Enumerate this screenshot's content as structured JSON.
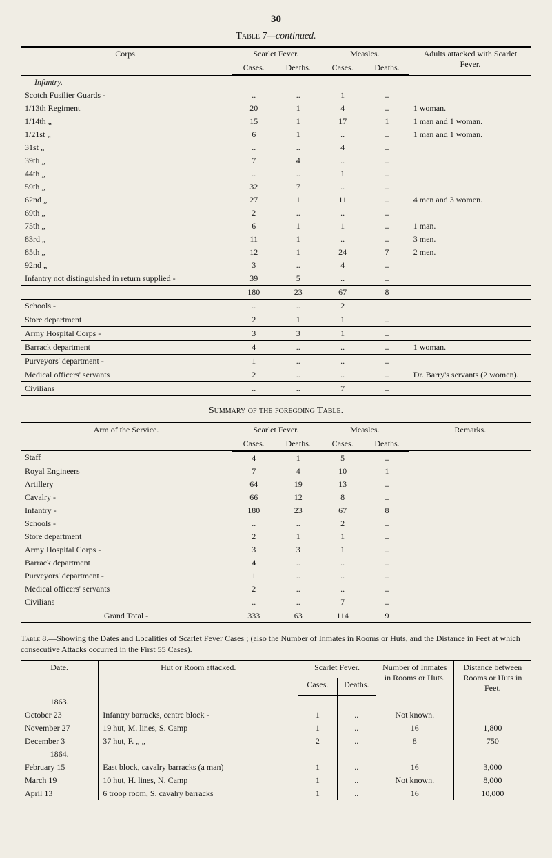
{
  "page_number": "30",
  "table7": {
    "title_prefix": "Table",
    "title_num": "7",
    "title_suffix": "—continued.",
    "headers": {
      "corps": "Corps.",
      "scarlet_fever": "Scarlet Fever.",
      "measles": "Measles.",
      "adults_attacked": "Adults attacked with Scarlet Fever.",
      "cases": "Cases.",
      "deaths": "Deaths."
    },
    "section_heading": "Infantry.",
    "rows": [
      {
        "corps": "Scotch Fusilier Guards  -",
        "sf_c": "..",
        "sf_d": "..",
        "m_c": "1",
        "m_d": "..",
        "rem": ""
      },
      {
        "corps": "1/13th Regiment",
        "sf_c": "20",
        "sf_d": "1",
        "m_c": "4",
        "m_d": "..",
        "rem": "1 woman."
      },
      {
        "corps": "1/14th    „",
        "sf_c": "15",
        "sf_d": "1",
        "m_c": "17",
        "m_d": "1",
        "rem": "1 man and 1 woman."
      },
      {
        "corps": "1/21st    „",
        "sf_c": "6",
        "sf_d": "1",
        "m_c": "..",
        "m_d": "..",
        "rem": "1 man and 1 woman."
      },
      {
        "corps": "31st       „",
        "sf_c": "..",
        "sf_d": "..",
        "m_c": "4",
        "m_d": "..",
        "rem": ""
      },
      {
        "corps": "39th      „",
        "sf_c": "7",
        "sf_d": "4",
        "m_c": "..",
        "m_d": "..",
        "rem": ""
      },
      {
        "corps": "44th      „",
        "sf_c": "..",
        "sf_d": "..",
        "m_c": "1",
        "m_d": "..",
        "rem": ""
      },
      {
        "corps": "59th      „",
        "sf_c": "32",
        "sf_d": "7",
        "m_c": "..",
        "m_d": "..",
        "rem": ""
      },
      {
        "corps": "62nd     „",
        "sf_c": "27",
        "sf_d": "1",
        "m_c": "11",
        "m_d": "..",
        "rem": "4 men and 3 women."
      },
      {
        "corps": "69th      „",
        "sf_c": "2",
        "sf_d": "..",
        "m_c": "..",
        "m_d": "..",
        "rem": ""
      },
      {
        "corps": "75th      „",
        "sf_c": "6",
        "sf_d": "1",
        "m_c": "1",
        "m_d": "..",
        "rem": "1 man."
      },
      {
        "corps": "83rd      „",
        "sf_c": "11",
        "sf_d": "1",
        "m_c": "..",
        "m_d": "..",
        "rem": "3 men."
      },
      {
        "corps": "85th      „",
        "sf_c": "12",
        "sf_d": "1",
        "m_c": "24",
        "m_d": "7",
        "rem": "2 men."
      },
      {
        "corps": "92nd     „",
        "sf_c": "3",
        "sf_d": "..",
        "m_c": "4",
        "m_d": "..",
        "rem": ""
      },
      {
        "corps": "Infantry not distinguished in return supplied  -",
        "sf_c": "39",
        "sf_d": "5",
        "m_c": "..",
        "m_d": "..",
        "rem": ""
      }
    ],
    "subtotal": {
      "sf_c": "180",
      "sf_d": "23",
      "m_c": "67",
      "m_d": "8"
    },
    "extras": [
      {
        "corps": "Schools  -",
        "sf_c": "..",
        "sf_d": "..",
        "m_c": "2",
        "m_d": "",
        "rem": ""
      },
      {
        "corps": "Store department",
        "sf_c": "2",
        "sf_d": "1",
        "m_c": "1",
        "m_d": "..",
        "rem": ""
      },
      {
        "corps": "Army Hospital Corps  -",
        "sf_c": "3",
        "sf_d": "3",
        "m_c": "1",
        "m_d": "..",
        "rem": ""
      },
      {
        "corps": "Barrack department",
        "sf_c": "4",
        "sf_d": "..",
        "m_c": "..",
        "m_d": "..",
        "rem": "1 woman."
      },
      {
        "corps": "Purveyors' department  -",
        "sf_c": "1",
        "sf_d": "..",
        "m_c": "..",
        "m_d": "..",
        "rem": ""
      },
      {
        "corps": "Medical officers' servants",
        "sf_c": "2",
        "sf_d": "..",
        "m_c": "..",
        "m_d": "..",
        "rem": "Dr. Barry's servants (2 women)."
      },
      {
        "corps": "Civilians",
        "sf_c": "..",
        "sf_d": "..",
        "m_c": "7",
        "m_d": "..",
        "rem": ""
      }
    ]
  },
  "summary": {
    "title": "Summary of the foregoing Table.",
    "headers": {
      "arm": "Arm of the Service.",
      "scarlet_fever": "Scarlet Fever.",
      "measles": "Measles.",
      "remarks": "Remarks.",
      "cases": "Cases.",
      "deaths": "Deaths."
    },
    "rows": [
      {
        "arm": "Staff",
        "sf_c": "4",
        "sf_d": "1",
        "m_c": "5",
        "m_d": "..",
        "rem": ""
      },
      {
        "arm": "Royal Engineers",
        "sf_c": "7",
        "sf_d": "4",
        "m_c": "10",
        "m_d": "1",
        "rem": ""
      },
      {
        "arm": "Artillery",
        "sf_c": "64",
        "sf_d": "19",
        "m_c": "13",
        "m_d": "..",
        "rem": ""
      },
      {
        "arm": "Cavalry  -",
        "sf_c": "66",
        "sf_d": "12",
        "m_c": "8",
        "m_d": "..",
        "rem": ""
      },
      {
        "arm": "Infantry -",
        "sf_c": "180",
        "sf_d": "23",
        "m_c": "67",
        "m_d": "8",
        "rem": ""
      },
      {
        "arm": "Schools  -",
        "sf_c": "..",
        "sf_d": "..",
        "m_c": "2",
        "m_d": "..",
        "rem": ""
      },
      {
        "arm": "Store department",
        "sf_c": "2",
        "sf_d": "1",
        "m_c": "1",
        "m_d": "..",
        "rem": ""
      },
      {
        "arm": "Army Hospital Corps  -",
        "sf_c": "3",
        "sf_d": "3",
        "m_c": "1",
        "m_d": "..",
        "rem": ""
      },
      {
        "arm": "Barrack department",
        "sf_c": "4",
        "sf_d": "..",
        "m_c": "..",
        "m_d": "..",
        "rem": ""
      },
      {
        "arm": "Purveyors' department  -",
        "sf_c": "1",
        "sf_d": "..",
        "m_c": "..",
        "m_d": "..",
        "rem": ""
      },
      {
        "arm": "Medical officers' servants",
        "sf_c": "2",
        "sf_d": "..",
        "m_c": "..",
        "m_d": "..",
        "rem": ""
      },
      {
        "arm": "Civilians",
        "sf_c": "..",
        "sf_d": "..",
        "m_c": "7",
        "m_d": "..",
        "rem": ""
      }
    ],
    "total": {
      "label": "Grand Total  -",
      "sf_c": "333",
      "sf_d": "63",
      "m_c": "114",
      "m_d": "9"
    }
  },
  "table8": {
    "caption_prefix": "Table",
    "caption_num": "8.",
    "caption_text": "—Showing the Dates and Localities of Scarlet Fever Cases ; (also the Number of Inmates in Rooms or Huts, and the Distance in Feet at which consecutive Attacks occurred in the First 55 Cases).",
    "headers": {
      "date": "Date.",
      "hut": "Hut or Room attacked.",
      "scarlet_fever": "Scarlet Fever.",
      "cases": "Cases.",
      "deaths": "Deaths.",
      "inmates": "Number of Inmates in Rooms or Huts.",
      "distance": "Distance between Rooms or Huts in Feet."
    },
    "year1": "1863.",
    "year2": "1864.",
    "rows": [
      {
        "date": "October 23",
        "hut": "Infantry barracks, centre block -",
        "c": "1",
        "d": "..",
        "in": "Not known.",
        "dist": ""
      },
      {
        "date": "November 27",
        "hut": "19 hut, M. lines, S. Camp",
        "c": "1",
        "d": "..",
        "in": "16",
        "dist": "1,800"
      },
      {
        "date": "December 3",
        "hut": "37 hut, F.  „      „",
        "c": "2",
        "d": "..",
        "in": "8",
        "dist": "750"
      },
      {
        "date": "February 15",
        "hut": "East block, cavalry barracks (a man)",
        "c": "1",
        "d": "..",
        "in": "16",
        "dist": "3,000"
      },
      {
        "date": "March 19",
        "hut": "10 hut, H. lines, N. Camp",
        "c": "1",
        "d": "..",
        "in": "Not known.",
        "dist": "8,000"
      },
      {
        "date": "April 13",
        "hut": "6 troop room, S. cavalry barracks",
        "c": "1",
        "d": "..",
        "in": "16",
        "dist": "10,000"
      }
    ]
  }
}
